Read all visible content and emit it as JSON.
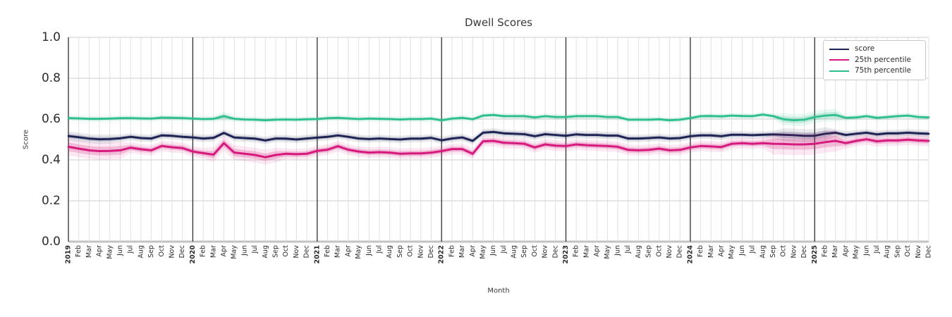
{
  "page": {
    "background": "#ffffff"
  },
  "chart_data": {
    "type": "line",
    "title": "Dwell Scores",
    "xlabel": "Month",
    "ylabel": "Score",
    "ylim": [
      0.0,
      1.0
    ],
    "yticks": [
      0.0,
      0.2,
      0.4,
      0.6,
      0.8,
      1.0
    ],
    "grid": true,
    "legend_position": "upper right",
    "x_tick_rotation": 90,
    "year_tick_indices": [
      0,
      12,
      24,
      36,
      48,
      60,
      72
    ],
    "categories": [
      "2019",
      "Feb",
      "Mar",
      "Apr",
      "May",
      "Jun",
      "Jul",
      "Aug",
      "Sep",
      "Oct",
      "Nov",
      "Dec",
      "2020",
      "Feb",
      "Mar",
      "Apr",
      "May",
      "Jun",
      "Jul",
      "Aug",
      "Sep",
      "Oct",
      "Nov",
      "Dec",
      "2021",
      "Feb",
      "Mar",
      "Apr",
      "May",
      "Jun",
      "Jul",
      "Aug",
      "Sep",
      "Oct",
      "Nov",
      "Dec",
      "2022",
      "Feb",
      "Mar",
      "Apr",
      "May",
      "Jun",
      "Jul",
      "Aug",
      "Sep",
      "Oct",
      "Nov",
      "Dec",
      "2023",
      "Feb",
      "Mar",
      "Apr",
      "May",
      "Jun",
      "Jul",
      "Aug",
      "Sep",
      "Oct",
      "Nov",
      "Dec",
      "2024",
      "Feb",
      "Mar",
      "Apr",
      "May",
      "Jun",
      "Jul",
      "Aug",
      "Sep",
      "Oct",
      "Nov",
      "Dec",
      "2025",
      "Feb",
      "Mar",
      "Apr",
      "May",
      "Jun",
      "Jul",
      "Aug",
      "Sep",
      "Oct",
      "Nov",
      "Dec"
    ],
    "series": [
      {
        "name": "score",
        "color": "#1b2150",
        "values": [
          0.517,
          0.511,
          0.504,
          0.501,
          0.502,
          0.506,
          0.513,
          0.507,
          0.505,
          0.52,
          0.518,
          0.513,
          0.51,
          0.505,
          0.508,
          0.532,
          0.51,
          0.507,
          0.504,
          0.495,
          0.505,
          0.504,
          0.5,
          0.505,
          0.509,
          0.513,
          0.52,
          0.513,
          0.505,
          0.502,
          0.505,
          0.502,
          0.5,
          0.504,
          0.504,
          0.508,
          0.496,
          0.505,
          0.51,
          0.493,
          0.533,
          0.537,
          0.53,
          0.528,
          0.526,
          0.516,
          0.526,
          0.522,
          0.518,
          0.525,
          0.522,
          0.522,
          0.519,
          0.519,
          0.505,
          0.505,
          0.507,
          0.51,
          0.505,
          0.507,
          0.516,
          0.52,
          0.52,
          0.516,
          0.523,
          0.523,
          0.521,
          0.523,
          0.525,
          0.523,
          0.521,
          0.518,
          0.518,
          0.528,
          0.533,
          0.522,
          0.528,
          0.533,
          0.525,
          0.53,
          0.53,
          0.533,
          0.53,
          0.528
        ],
        "band": {
          "default": 0.009,
          "overrides": [
            {
              "from": 0,
              "to": 4,
              "value": 0.011
            },
            {
              "from": 69,
              "to": 73,
              "value": 0.016
            }
          ]
        }
      },
      {
        "name": "25th percentile",
        "color": "#d6197d",
        "values": [
          0.464,
          0.455,
          0.447,
          0.443,
          0.444,
          0.447,
          0.46,
          0.452,
          0.447,
          0.468,
          0.462,
          0.458,
          0.441,
          0.433,
          0.426,
          0.482,
          0.436,
          0.43,
          0.424,
          0.413,
          0.424,
          0.43,
          0.428,
          0.43,
          0.444,
          0.45,
          0.467,
          0.45,
          0.441,
          0.436,
          0.438,
          0.436,
          0.43,
          0.432,
          0.432,
          0.436,
          0.443,
          0.453,
          0.453,
          0.43,
          0.491,
          0.493,
          0.484,
          0.482,
          0.479,
          0.461,
          0.476,
          0.47,
          0.468,
          0.476,
          0.472,
          0.47,
          0.468,
          0.464,
          0.449,
          0.447,
          0.449,
          0.455,
          0.447,
          0.449,
          0.461,
          0.468,
          0.466,
          0.463,
          0.479,
          0.482,
          0.479,
          0.482,
          0.479,
          0.478,
          0.476,
          0.476,
          0.479,
          0.487,
          0.493,
          0.482,
          0.493,
          0.501,
          0.491,
          0.495,
          0.495,
          0.499,
          0.495,
          0.493
        ],
        "band": {
          "default": 0.013,
          "overrides": [
            {
              "from": 0,
              "to": 5,
              "value": 0.021
            },
            {
              "from": 14,
              "to": 20,
              "value": 0.018
            },
            {
              "from": 68,
              "to": 74,
              "value": 0.026
            }
          ]
        }
      },
      {
        "name": "75th percentile",
        "color": "#2fbe8e",
        "values": [
          0.605,
          0.603,
          0.601,
          0.601,
          0.602,
          0.604,
          0.605,
          0.603,
          0.602,
          0.607,
          0.606,
          0.605,
          0.602,
          0.6,
          0.601,
          0.614,
          0.601,
          0.598,
          0.597,
          0.594,
          0.597,
          0.598,
          0.597,
          0.599,
          0.6,
          0.604,
          0.606,
          0.603,
          0.6,
          0.602,
          0.601,
          0.6,
          0.598,
          0.6,
          0.6,
          0.602,
          0.594,
          0.602,
          0.606,
          0.599,
          0.617,
          0.62,
          0.614,
          0.614,
          0.614,
          0.608,
          0.614,
          0.61,
          0.61,
          0.614,
          0.614,
          0.614,
          0.61,
          0.61,
          0.597,
          0.597,
          0.597,
          0.599,
          0.594,
          0.597,
          0.605,
          0.614,
          0.615,
          0.613,
          0.617,
          0.615,
          0.614,
          0.622,
          0.614,
          0.599,
          0.594,
          0.597,
          0.61,
          0.617,
          0.62,
          0.606,
          0.608,
          0.614,
          0.606,
          0.61,
          0.614,
          0.617,
          0.61,
          0.608
        ],
        "band": {
          "default": 0.007,
          "overrides": [
            {
              "from": 15,
              "to": 15,
              "value": 0.012
            },
            {
              "from": 69,
              "to": 74,
              "value": 0.015
            }
          ]
        }
      }
    ],
    "style_colors": {
      "minor_grid": "#dddddd",
      "major_grid": "#cccccc",
      "year_line": "#303030",
      "baseline": "#c3c3c3",
      "tick_text": "#2b2b2b"
    }
  }
}
